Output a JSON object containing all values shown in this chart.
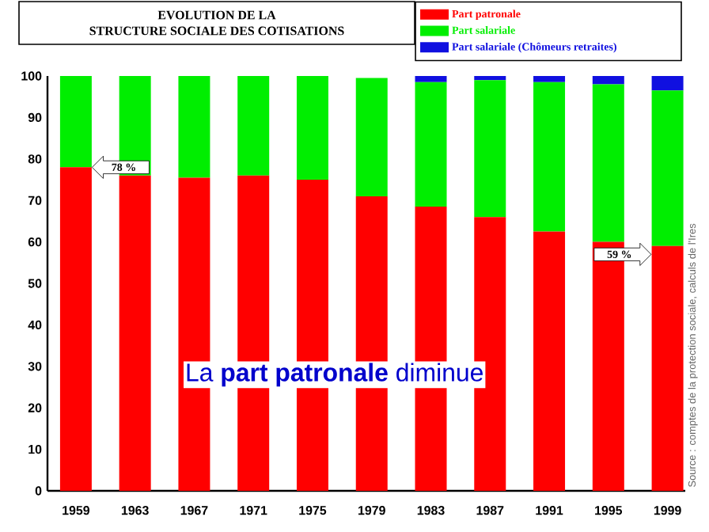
{
  "chart_data": {
    "type": "bar",
    "stacked": true,
    "title": "EVOLUTION DE LA",
    "subtitle": "STRUCTURE SOCIALE DES COTISATIONS",
    "categories": [
      "1959",
      "1963",
      "1967",
      "1971",
      "1975",
      "1979",
      "1983",
      "1987",
      "1991",
      "1995",
      "1999"
    ],
    "series": [
      {
        "name": "Part patronale",
        "color": "#ff0000",
        "values": [
          78,
          76,
          75.5,
          76,
          75,
          71,
          68.5,
          66,
          62.5,
          60,
          59
        ]
      },
      {
        "name": "Part salariale",
        "color": "#00ee00",
        "values": [
          22,
          24,
          24.5,
          24,
          25,
          28.5,
          30,
          33,
          36,
          38,
          37.5
        ]
      },
      {
        "name": "Part salariale (Chômeurs retraites)",
        "color": "#1010e0",
        "values": [
          0,
          0,
          0,
          0,
          0,
          0,
          1.5,
          1,
          1.5,
          2,
          3.5
        ]
      }
    ],
    "ylim": [
      0,
      100
    ],
    "yticks": [
      0,
      10,
      20,
      30,
      40,
      50,
      60,
      70,
      80,
      90,
      100
    ],
    "grid": false,
    "legend": "top right",
    "annotations": [
      "78 %",
      "59 %",
      "La **part patronale** diminue",
      "Source : comptes de la protection sociale, calculs de l'Ires"
    ]
  }
}
